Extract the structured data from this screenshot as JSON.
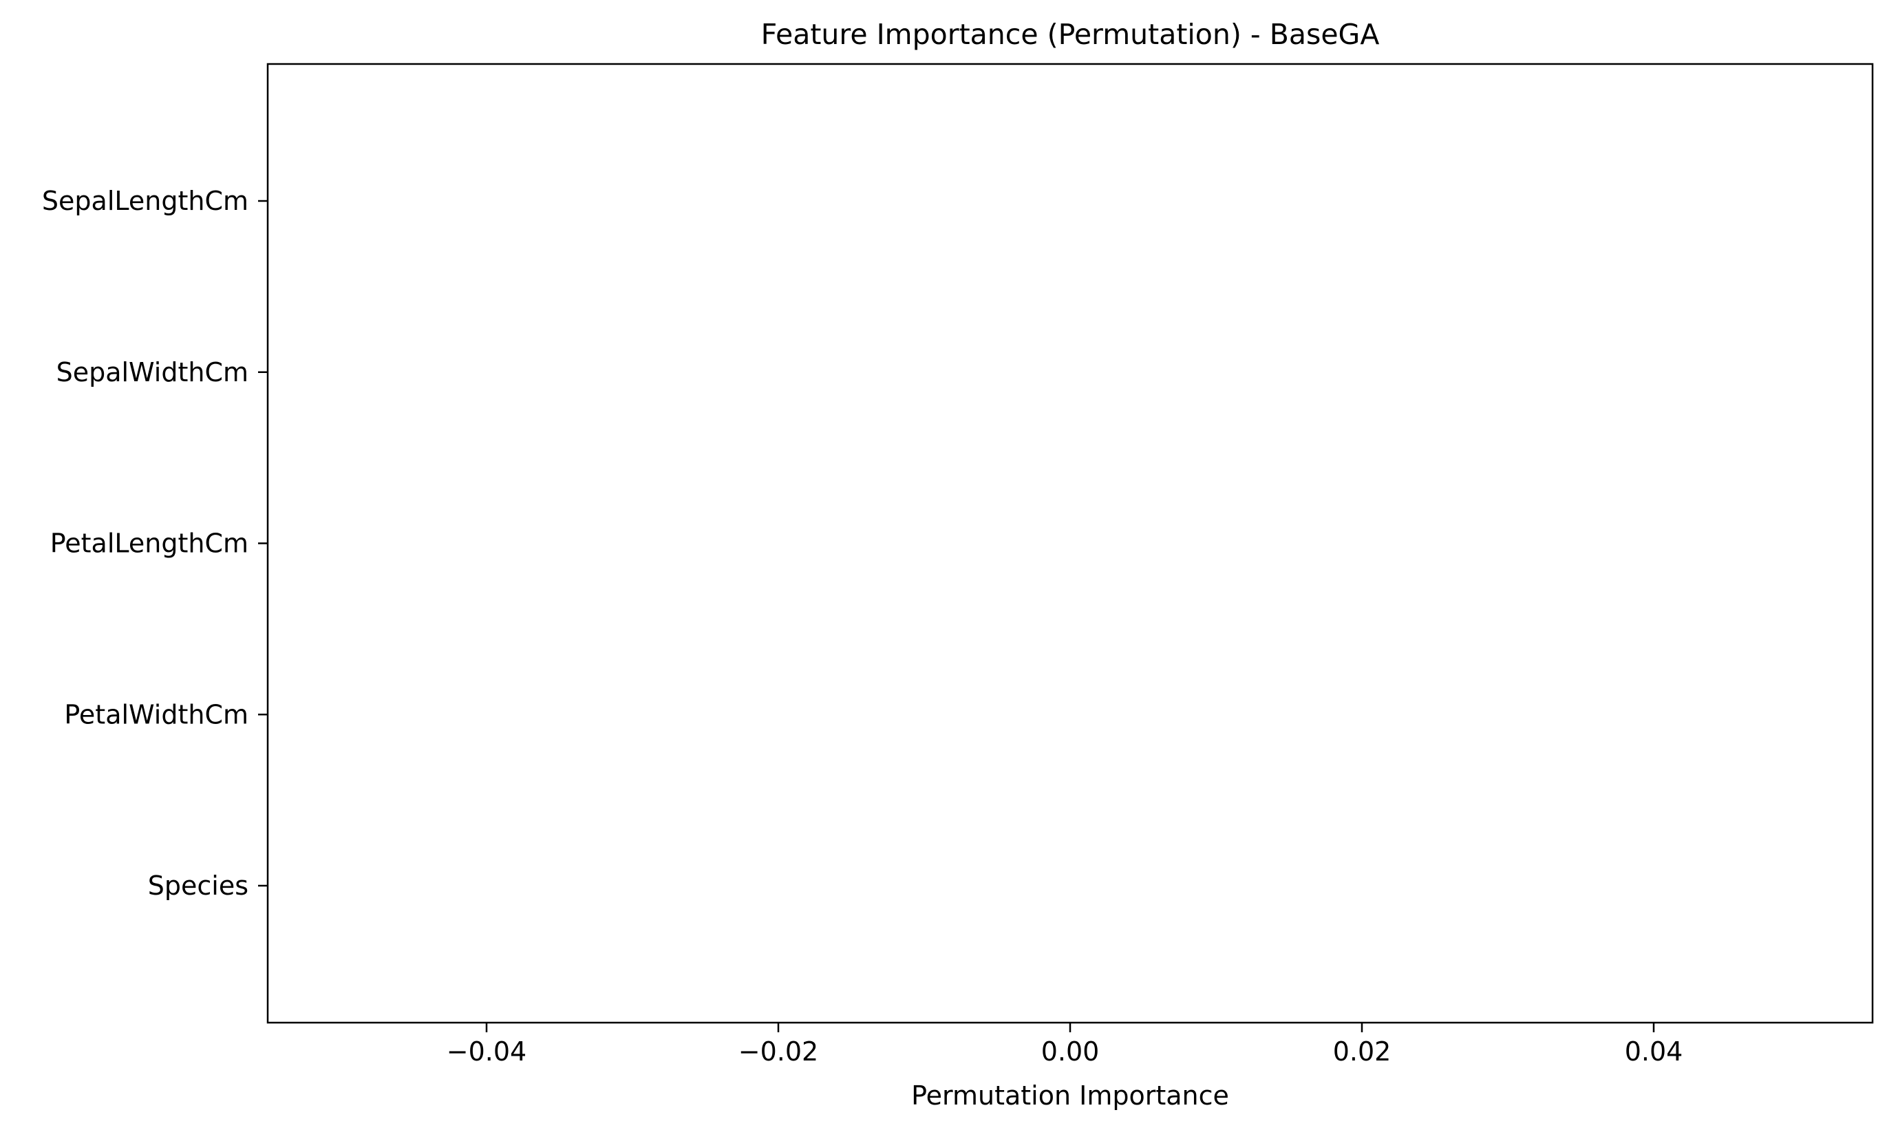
{
  "chart_data": {
    "type": "bar",
    "orientation": "horizontal",
    "title": "Feature Importance (Permutation) - BaseGA",
    "xlabel": "Permutation Importance",
    "ylabel": "",
    "categories": [
      "SepalLengthCm",
      "SepalWidthCm",
      "PetalLengthCm",
      "PetalWidthCm",
      "Species"
    ],
    "values": [
      0,
      0,
      0,
      0,
      0
    ],
    "xlim": [
      -0.055,
      0.055
    ],
    "xticks": [
      -0.04,
      -0.02,
      0.0,
      0.02,
      0.04
    ],
    "xtick_labels": [
      "−0.04",
      "−0.02",
      "0.00",
      "0.02",
      "0.04"
    ],
    "grid": false,
    "legend": "none",
    "colors": {
      "bar": "#1f77b4",
      "axis": "#000000",
      "background": "#ffffff"
    }
  }
}
